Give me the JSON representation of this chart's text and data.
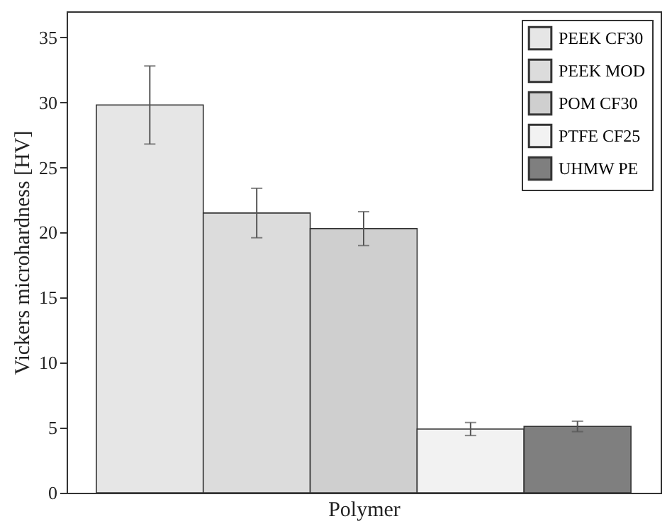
{
  "chart_data": {
    "type": "bar",
    "xlabel": "Polymer",
    "ylabel": "Vickers microhardness [HV]",
    "categories": [
      null
    ],
    "series": [
      {
        "name": "PEEK CF30",
        "color": "#e6e6e6",
        "values": [
          29.8
        ],
        "errors": [
          3.0
        ]
      },
      {
        "name": "PEEK MOD",
        "color": "#dcdcdc",
        "values": [
          21.5
        ],
        "errors": [
          1.9
        ]
      },
      {
        "name": "POM CF30",
        "color": "#cfcfcf",
        "values": [
          20.3
        ],
        "errors": [
          1.3
        ]
      },
      {
        "name": "PTFE CF25",
        "color": "#f2f2f2",
        "values": [
          4.9
        ],
        "errors": [
          0.5
        ]
      },
      {
        "name": "UHMW PE",
        "color": "#7f7f7f",
        "values": [
          5.1
        ],
        "errors": [
          0.4
        ]
      }
    ],
    "ylim": [
      0,
      37
    ],
    "yticks": [
      0,
      5,
      10,
      15,
      20,
      25,
      30,
      35
    ],
    "grid": false,
    "legend": "top right",
    "tick_labels": "y"
  }
}
